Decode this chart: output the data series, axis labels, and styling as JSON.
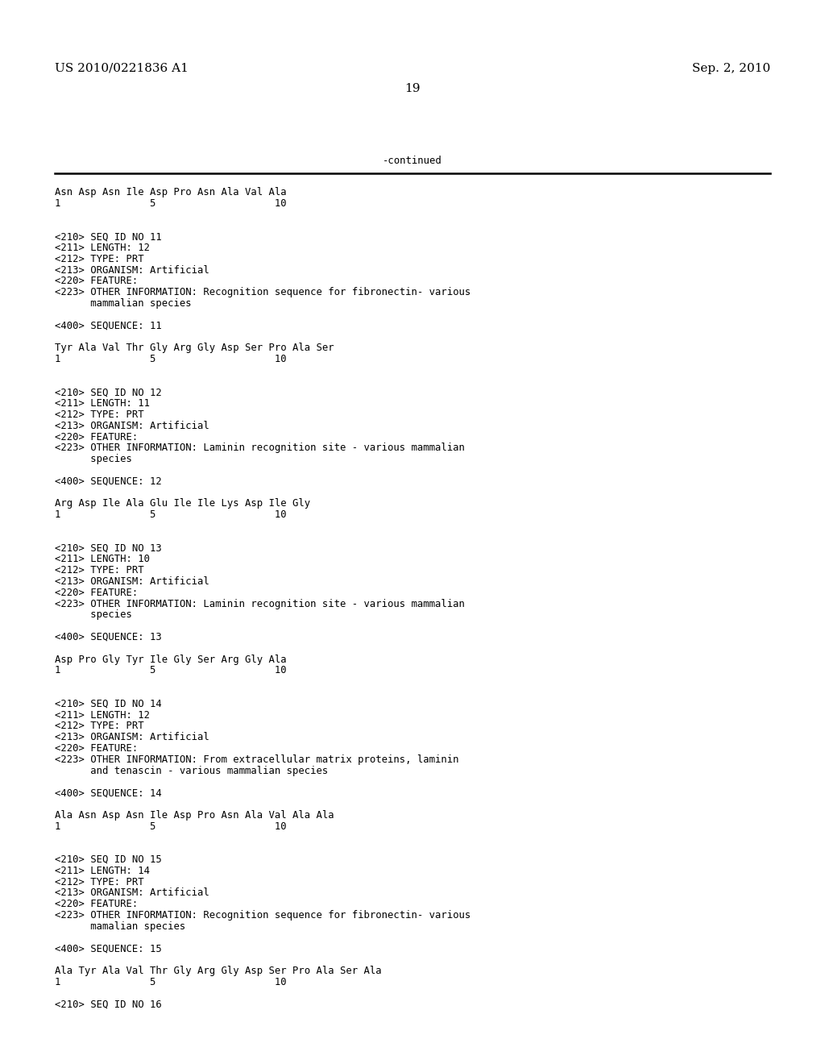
{
  "header_left": "US 2010/0221836 A1",
  "header_right": "Sep. 2, 2010",
  "page_number": "19",
  "continued_text": "-continued",
  "background_color": "#ffffff",
  "text_color": "#000000",
  "font_size_header": 11.0,
  "font_size_body": 8.8,
  "body_lines": [
    "Asn Asp Asn Ile Asp Pro Asn Ala Val Ala",
    "1               5                    10",
    "",
    "",
    "<210> SEQ ID NO 11",
    "<211> LENGTH: 12",
    "<212> TYPE: PRT",
    "<213> ORGANISM: Artificial",
    "<220> FEATURE:",
    "<223> OTHER INFORMATION: Recognition sequence for fibronectin- various",
    "      mammalian species",
    "",
    "<400> SEQUENCE: 11",
    "",
    "Tyr Ala Val Thr Gly Arg Gly Asp Ser Pro Ala Ser",
    "1               5                    10",
    "",
    "",
    "<210> SEQ ID NO 12",
    "<211> LENGTH: 11",
    "<212> TYPE: PRT",
    "<213> ORGANISM: Artificial",
    "<220> FEATURE:",
    "<223> OTHER INFORMATION: Laminin recognition site - various mammalian",
    "      species",
    "",
    "<400> SEQUENCE: 12",
    "",
    "Arg Asp Ile Ala Glu Ile Ile Lys Asp Ile Gly",
    "1               5                    10",
    "",
    "",
    "<210> SEQ ID NO 13",
    "<211> LENGTH: 10",
    "<212> TYPE: PRT",
    "<213> ORGANISM: Artificial",
    "<220> FEATURE:",
    "<223> OTHER INFORMATION: Laminin recognition site - various mammalian",
    "      species",
    "",
    "<400> SEQUENCE: 13",
    "",
    "Asp Pro Gly Tyr Ile Gly Ser Arg Gly Ala",
    "1               5                    10",
    "",
    "",
    "<210> SEQ ID NO 14",
    "<211> LENGTH: 12",
    "<212> TYPE: PRT",
    "<213> ORGANISM: Artificial",
    "<220> FEATURE:",
    "<223> OTHER INFORMATION: From extracellular matrix proteins, laminin",
    "      and tenascin - various mammalian species",
    "",
    "<400> SEQUENCE: 14",
    "",
    "Ala Asn Asp Asn Ile Asp Pro Asn Ala Val Ala Ala",
    "1               5                    10",
    "",
    "",
    "<210> SEQ ID NO 15",
    "<211> LENGTH: 14",
    "<212> TYPE: PRT",
    "<213> ORGANISM: Artificial",
    "<220> FEATURE:",
    "<223> OTHER INFORMATION: Recognition sequence for fibronectin- various",
    "      mamalian species",
    "",
    "<400> SEQUENCE: 15",
    "",
    "Ala Tyr Ala Val Thr Gly Arg Gly Asp Ser Pro Ala Ser Ala",
    "1               5                    10",
    "",
    "<210> SEQ ID NO 16"
  ]
}
